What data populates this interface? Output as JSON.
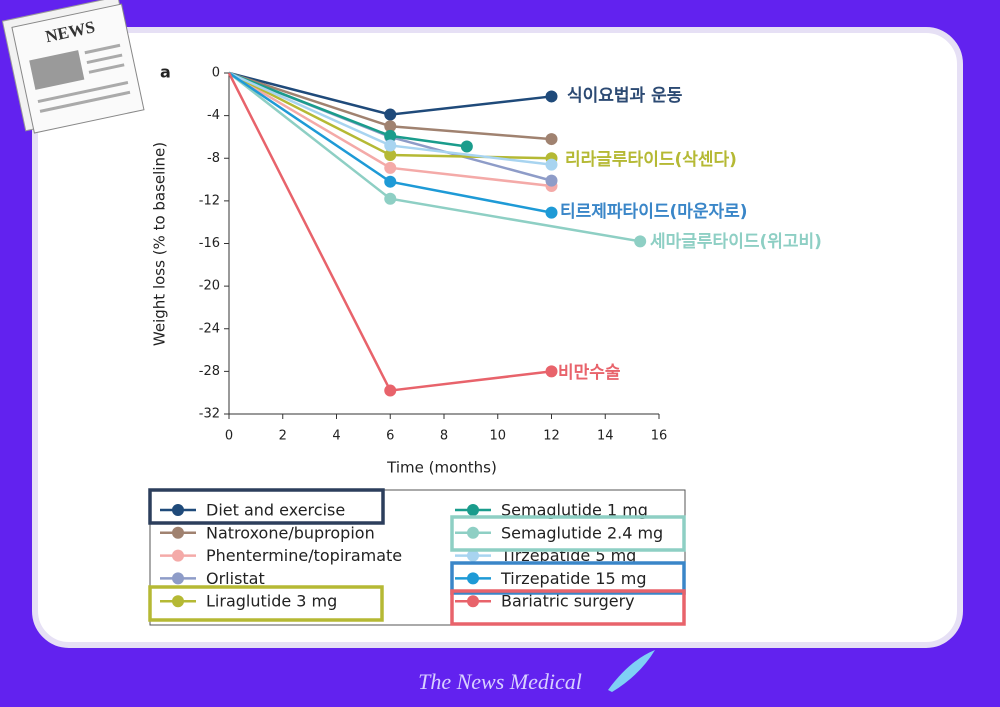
{
  "logo": "NEWS",
  "footer": "The News Medical",
  "chart_data": {
    "type": "line",
    "panel_label": "a",
    "x_label": "Time (months)",
    "y_label": "Weight loss (% to baseline)",
    "xlim": [
      0,
      16
    ],
    "xticks": [
      0,
      2,
      4,
      6,
      8,
      10,
      12,
      14,
      16
    ],
    "ylim": [
      -32,
      0
    ],
    "yticks": [
      0,
      -4,
      -8,
      -12,
      -16,
      -20,
      -24,
      -28,
      -32
    ],
    "series": [
      {
        "name": "Diet and exercise",
        "color": "#1f4a7a",
        "x": [
          0,
          6,
          12
        ],
        "values": [
          0,
          -3.9,
          -2.2
        ]
      },
      {
        "name": "Natroxone/bupropion",
        "color": "#a08270",
        "x": [
          0,
          6,
          12
        ],
        "values": [
          0,
          -5,
          -6.2
        ]
      },
      {
        "name": "Phentermine/topiramate",
        "color": "#f4aaa8",
        "x": [
          0,
          6,
          12
        ],
        "values": [
          0,
          -8.9,
          -10.6
        ]
      },
      {
        "name": "Orlistat",
        "color": "#8e9cc8",
        "x": [
          0,
          6,
          12
        ],
        "values": [
          0,
          -6,
          -10.1
        ]
      },
      {
        "name": "Liraglutide 3 mg",
        "color": "#b5b934",
        "x": [
          0,
          6,
          12
        ],
        "values": [
          0,
          -7.7,
          -8
        ]
      },
      {
        "name": "Semaglutide 1 mg",
        "color": "#1a9c8c",
        "x": [
          0,
          6,
          8.85
        ],
        "values": [
          0,
          -5.9,
          -6.9
        ]
      },
      {
        "name": "Semaglutide 2.4 mg",
        "color": "#8ecfc4",
        "x": [
          0,
          6,
          15.3
        ],
        "values": [
          0,
          -11.8,
          -15.8
        ]
      },
      {
        "name": "Tirzepatide 5 mg",
        "color": "#a8d4f0",
        "x": [
          0,
          6,
          12
        ],
        "values": [
          0,
          -6.8,
          -8.6
        ]
      },
      {
        "name": "Tirzepatide 15 mg",
        "color": "#1e9ad6",
        "x": [
          0,
          6,
          12
        ],
        "values": [
          0,
          -10.2,
          -13.1
        ]
      },
      {
        "name": "Bariatric surgery",
        "color": "#e8636b",
        "x": [
          0,
          6,
          12
        ],
        "values": [
          0,
          -29.8,
          -28
        ]
      }
    ],
    "annotations": [
      {
        "text": "식이요법과 운동",
        "color": "#2c4a73"
      },
      {
        "text": "리라글루타이드(삭센다)",
        "color": "#b5b934"
      },
      {
        "text": "티르제파타이드(마운자로)",
        "color": "#3a86c8"
      },
      {
        "text": "세마글루타이드(위고비)",
        "color": "#8ecfc4"
      },
      {
        "text": "비만수술",
        "color": "#e8636b"
      }
    ]
  }
}
